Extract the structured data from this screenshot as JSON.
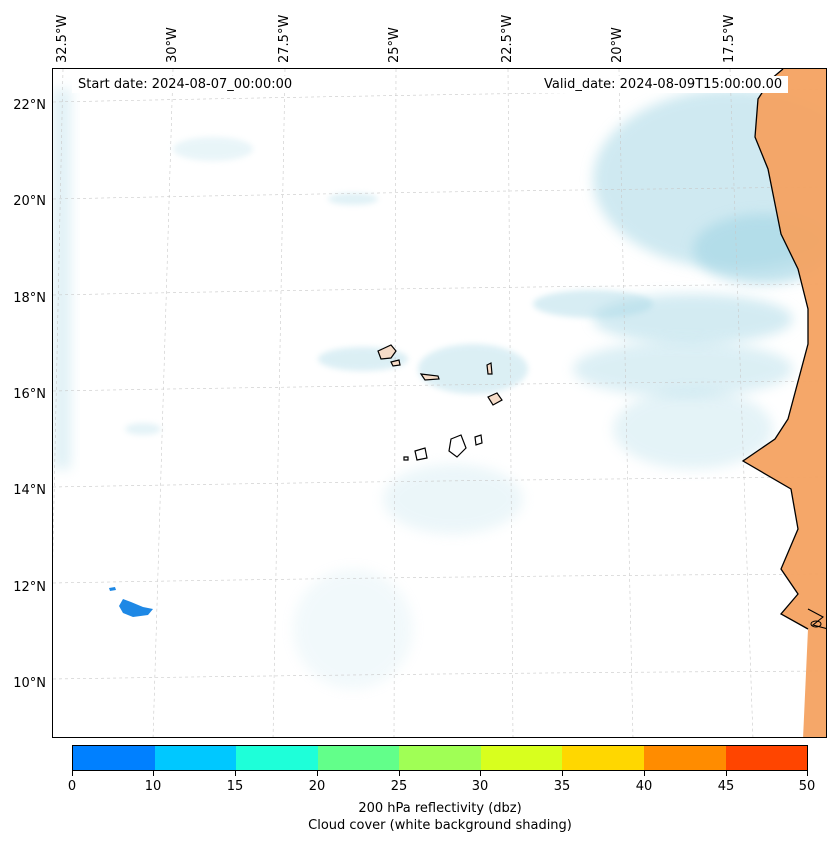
{
  "map": {
    "start_date": "Start date: 2024-08-07_00:00:00",
    "valid_date": "Valid_date: 2024-08-09T15:00:00.00",
    "lon_labels": [
      "32.5°W",
      "30°W",
      "27.5°W",
      "25°W",
      "22.5°W",
      "20°W",
      "17.5°W"
    ],
    "lat_labels": [
      "22°N",
      "20°N",
      "18°N",
      "16°N",
      "14°N",
      "12°N",
      "10°N"
    ],
    "colors": {
      "land": "#f4a261",
      "cloud": "#a8d8e6",
      "reflectivity_cell": "#1e88e5",
      "coastline": "#000000",
      "gridline": "#c8c8c8"
    }
  },
  "colorbar": {
    "tick_labels": [
      "0",
      "10",
      "15",
      "20",
      "25",
      "30",
      "35",
      "40",
      "45",
      "50"
    ],
    "colors": [
      "#0080ff",
      "#00c8ff",
      "#1effd9",
      "#62ff8a",
      "#a0ff55",
      "#d8ff1e",
      "#ffd700",
      "#ff8c00",
      "#ff4500"
    ],
    "title_line1": "200 hPa reflectivity (dbz)",
    "title_line2": "Cloud cover (white background shading)"
  }
}
